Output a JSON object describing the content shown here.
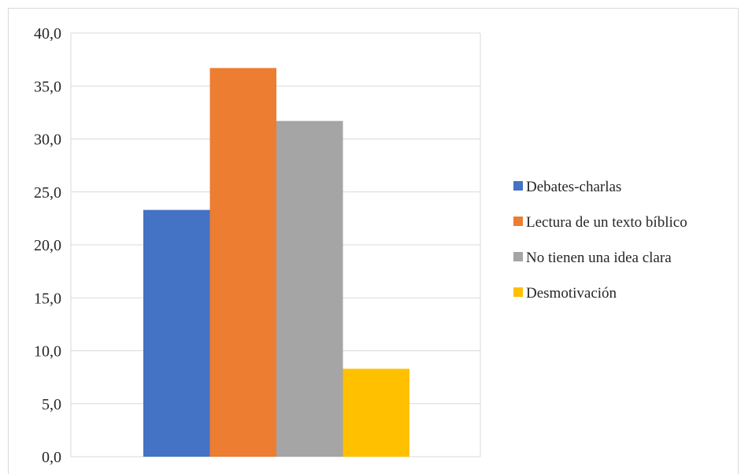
{
  "chart_data": {
    "type": "bar",
    "categories": [
      ""
    ],
    "series": [
      {
        "name": "Debates-charlas",
        "values": [
          23.3
        ],
        "color": "#4472c4"
      },
      {
        "name": "Lectura de un texto bíblico",
        "values": [
          36.7
        ],
        "color": "#ed7d31"
      },
      {
        "name": "No tienen una idea clara",
        "values": [
          31.7
        ],
        "color": "#a5a5a5"
      },
      {
        "name": "Desmotivación",
        "values": [
          8.3
        ],
        "color": "#ffc000"
      }
    ],
    "title": "",
    "xlabel": "",
    "ylabel": "",
    "ylim": [
      0,
      40
    ],
    "yticks": [
      "0,0",
      "5,0",
      "10,0",
      "15,0",
      "20,0",
      "25,0",
      "30,0",
      "35,0",
      "40,0"
    ],
    "grid": true,
    "legend_position": "right",
    "gridline_color": "#d9d9d9"
  }
}
